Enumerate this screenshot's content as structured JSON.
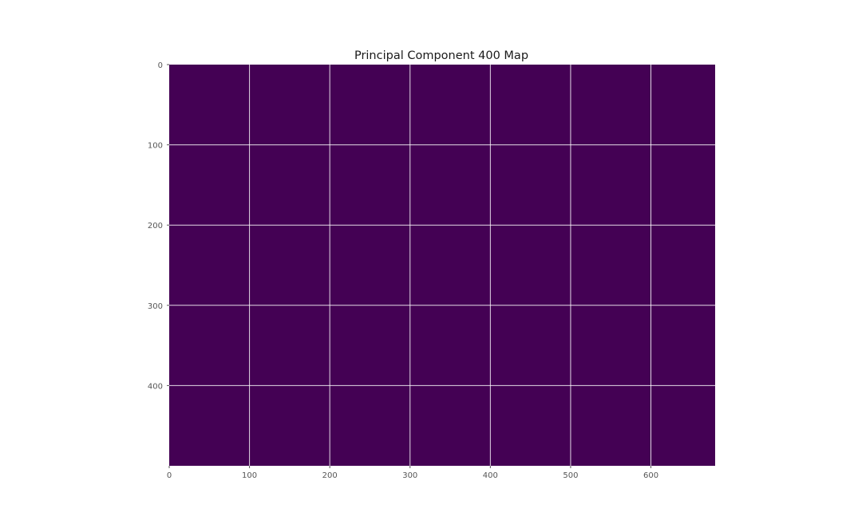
{
  "chart_data": {
    "type": "heatmap",
    "title": "Principal Component 400 Map",
    "xlabel": "",
    "ylabel": "",
    "xlim": [
      0,
      680
    ],
    "ylim": [
      500,
      0
    ],
    "x_ticks": [
      0,
      100,
      200,
      300,
      400,
      500,
      600
    ],
    "y_ticks": [
      0,
      100,
      200,
      300,
      400
    ],
    "grid": true,
    "grid_color": "#ffffff",
    "cell_color": "#440154",
    "values": [
      [
        0
      ]
    ],
    "colormap": "viridis"
  }
}
